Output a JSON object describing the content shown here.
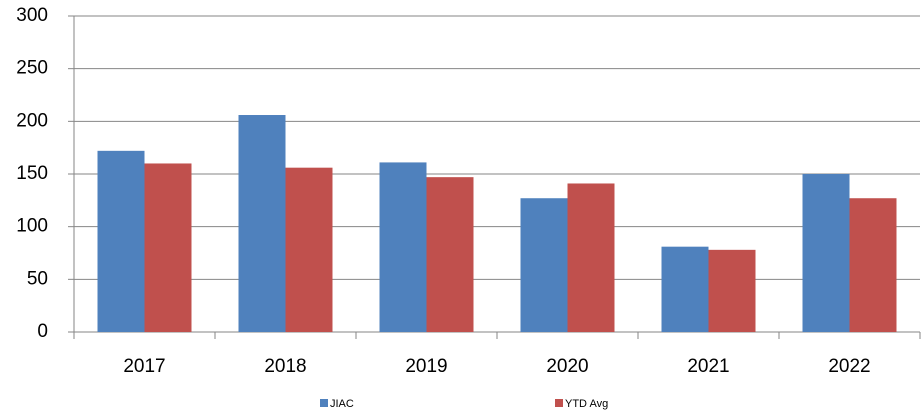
{
  "chart_data": {
    "type": "bar",
    "categories": [
      "2017",
      "2018",
      "2019",
      "2020",
      "2021",
      "2022"
    ],
    "series": [
      {
        "name": "JIAC",
        "color": "#4f81bd",
        "values": [
          172,
          206,
          161,
          127,
          81,
          150
        ]
      },
      {
        "name": "YTD Avg",
        "color": "#c0504d",
        "values": [
          160,
          156,
          147,
          141,
          78,
          127
        ]
      }
    ],
    "ylim": [
      0,
      300
    ],
    "yticks": [
      0,
      50,
      100,
      150,
      200,
      250,
      300
    ],
    "grid": true,
    "legend": "bottom"
  }
}
